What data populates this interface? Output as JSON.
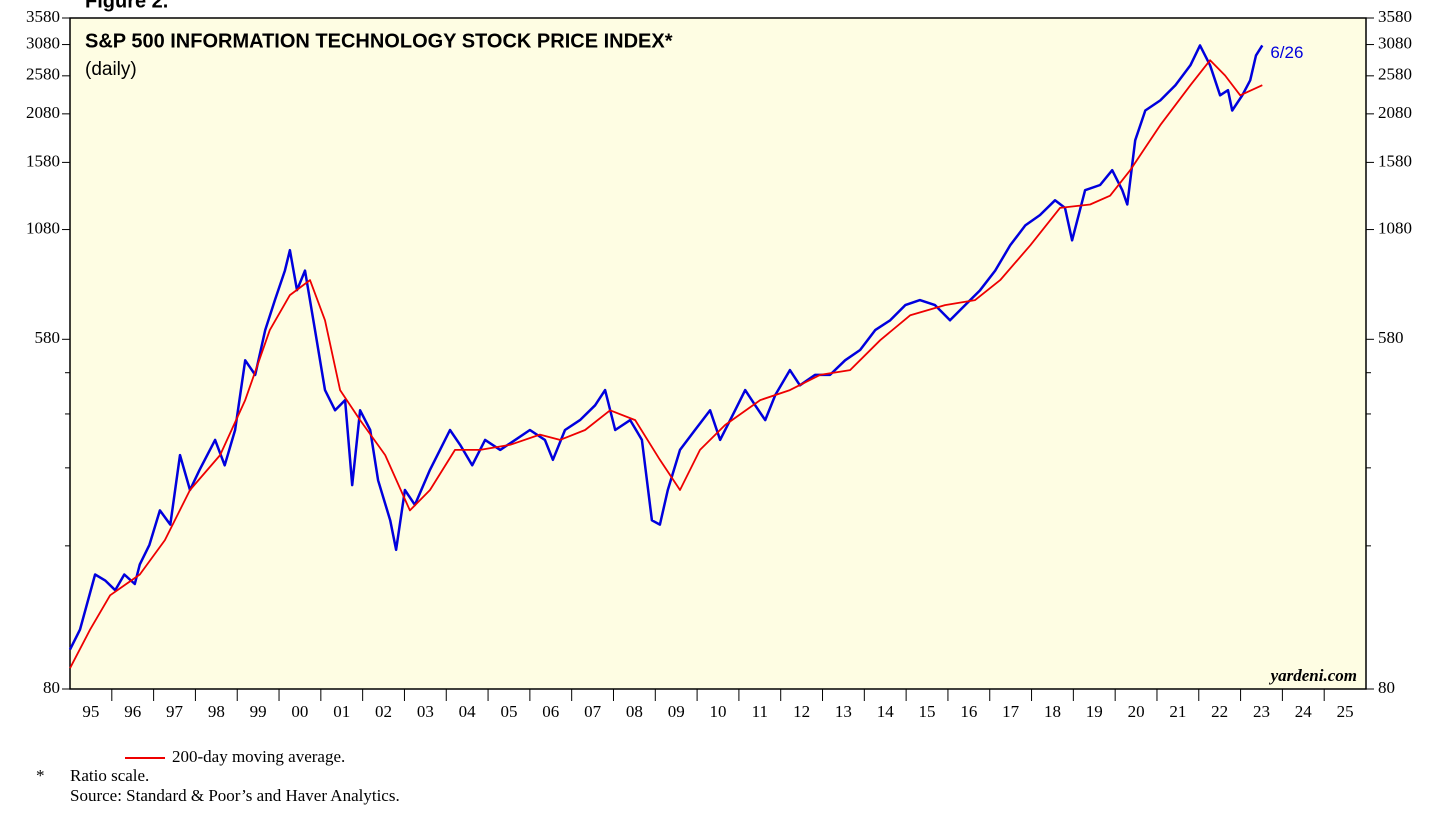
{
  "figure_label": "Figure 2.",
  "chart_data": {
    "type": "line",
    "title": "S&P 500 INFORMATION TECHNOLOGY STOCK PRICE INDEX*",
    "subtitle": "(daily)",
    "annotation": "6/26",
    "watermark": "yardeni.com",
    "log_scale": true,
    "background": "#fefde3",
    "ylim": [
      80,
      3580
    ],
    "yticks": [
      80,
      580,
      1080,
      1580,
      2080,
      2580,
      3080,
      3580
    ],
    "yminorticks": [
      180,
      280,
      380,
      480
    ],
    "xlim": [
      1995,
      2026
    ],
    "xticks": [
      {
        "value": 1995.5,
        "label": "95"
      },
      {
        "value": 1996.5,
        "label": "96"
      },
      {
        "value": 1997.5,
        "label": "97"
      },
      {
        "value": 1998.5,
        "label": "98"
      },
      {
        "value": 1999.5,
        "label": "99"
      },
      {
        "value": 2000.5,
        "label": "00"
      },
      {
        "value": 2001.5,
        "label": "01"
      },
      {
        "value": 2002.5,
        "label": "02"
      },
      {
        "value": 2003.5,
        "label": "03"
      },
      {
        "value": 2004.5,
        "label": "04"
      },
      {
        "value": 2005.5,
        "label": "05"
      },
      {
        "value": 2006.5,
        "label": "06"
      },
      {
        "value": 2007.5,
        "label": "07"
      },
      {
        "value": 2008.5,
        "label": "08"
      },
      {
        "value": 2009.5,
        "label": "09"
      },
      {
        "value": 2010.5,
        "label": "10"
      },
      {
        "value": 2011.5,
        "label": "11"
      },
      {
        "value": 2012.5,
        "label": "12"
      },
      {
        "value": 2013.5,
        "label": "13"
      },
      {
        "value": 2014.5,
        "label": "14"
      },
      {
        "value": 2015.5,
        "label": "15"
      },
      {
        "value": 2016.5,
        "label": "16"
      },
      {
        "value": 2017.5,
        "label": "17"
      },
      {
        "value": 2018.5,
        "label": "18"
      },
      {
        "value": 2019.5,
        "label": "19"
      },
      {
        "value": 2020.5,
        "label": "20"
      },
      {
        "value": 2021.5,
        "label": "21"
      },
      {
        "value": 2022.5,
        "label": "22"
      },
      {
        "value": 2023.5,
        "label": "23"
      },
      {
        "value": 2024.5,
        "label": "24"
      },
      {
        "value": 2025.5,
        "label": "25"
      }
    ],
    "xminorticks": [
      1996,
      1997,
      1998,
      1999,
      2000,
      2001,
      2002,
      2003,
      2004,
      2005,
      2006,
      2007,
      2008,
      2009,
      2010,
      2011,
      2012,
      2013,
      2014,
      2015,
      2016,
      2017,
      2018,
      2019,
      2020,
      2021,
      2022,
      2023,
      2024,
      2025
    ],
    "series": [
      {
        "color": "#0000dd",
        "x": [
          1995.0,
          1995.24,
          1995.6,
          1995.84,
          1996.08,
          1996.3,
          1996.55,
          1996.67,
          1996.9,
          1997.15,
          1997.4,
          1997.63,
          1997.87,
          1998.1,
          1998.47,
          1998.7,
          1998.95,
          1999.19,
          1999.43,
          1999.67,
          1999.9,
          2000.14,
          2000.26,
          2000.43,
          2000.62,
          2000.86,
          2001.1,
          2001.34,
          2001.58,
          2001.75,
          2001.94,
          2002.18,
          2002.37,
          2002.66,
          2002.8,
          2003.01,
          2003.25,
          2003.61,
          2003.85,
          2004.09,
          2004.33,
          2004.62,
          2004.93,
          2005.29,
          2005.65,
          2006.0,
          2006.36,
          2006.55,
          2006.84,
          2007.2,
          2007.56,
          2007.8,
          2008.04,
          2008.4,
          2008.68,
          2008.92,
          2009.11,
          2009.3,
          2009.59,
          2009.95,
          2010.31,
          2010.55,
          2010.91,
          2011.15,
          2011.39,
          2011.63,
          2011.87,
          2012.22,
          2012.46,
          2012.82,
          2013.18,
          2013.54,
          2013.9,
          2014.26,
          2014.62,
          2014.98,
          2015.33,
          2015.69,
          2016.05,
          2016.41,
          2016.77,
          2017.13,
          2017.49,
          2017.85,
          2018.2,
          2018.56,
          2018.8,
          2018.97,
          2019.28,
          2019.64,
          2019.93,
          2020.17,
          2020.29,
          2020.48,
          2020.72,
          2021.08,
          2021.44,
          2021.8,
          2022.03,
          2022.27,
          2022.51,
          2022.7,
          2022.8,
          2023.04,
          2023.23,
          2023.37,
          2023.52
        ],
        "values": [
          100,
          112,
          153,
          148,
          140,
          153,
          145,
          162,
          181,
          220,
          203,
          301,
          247,
          277,
          328,
          284,
          347,
          515,
          474,
          611,
          724,
          856,
          961,
          766,
          856,
          611,
          435,
          388,
          411,
          254,
          388,
          347,
          261,
          208,
          176,
          247,
          227,
          277,
          310,
          347,
          319,
          284,
          328,
          310,
          328,
          347,
          328,
          293,
          347,
          367,
          399,
          435,
          347,
          367,
          328,
          208,
          203,
          247,
          310,
          347,
          388,
          328,
          388,
          435,
          399,
          367,
          423,
          487,
          447,
          474,
          474,
          515,
          546,
          611,
          646,
          704,
          724,
          704,
          646,
          704,
          766,
          856,
          988,
          1106,
          1172,
          1275,
          1221,
          1016,
          1350,
          1390,
          1512,
          1350,
          1245,
          1791,
          2120,
          2245,
          2447,
          2739,
          3065,
          2739,
          2311,
          2378,
          2120,
          2311,
          2516,
          2896,
          3065
        ]
      },
      {
        "name": "200-day moving average.",
        "color": "#ee0000",
        "x": [
          1995.0,
          1995.48,
          1995.96,
          1996.67,
          1997.27,
          1997.87,
          1998.59,
          1999.19,
          1999.78,
          2000.26,
          2000.74,
          2001.1,
          2001.46,
          2001.94,
          2002.54,
          2003.13,
          2003.61,
          2004.21,
          2004.81,
          2005.53,
          2006.24,
          2006.72,
          2007.32,
          2007.92,
          2008.52,
          2009.11,
          2009.59,
          2010.07,
          2010.67,
          2011.51,
          2012.22,
          2012.94,
          2013.66,
          2014.38,
          2015.1,
          2015.93,
          2016.65,
          2017.25,
          2017.97,
          2018.68,
          2019.4,
          2019.88,
          2020.36,
          2021.08,
          2021.8,
          2022.27,
          2022.63,
          2022.99,
          2023.52
        ],
        "values": [
          90,
          112,
          136,
          153,
          186,
          247,
          301,
          411,
          611,
          745,
          811,
          646,
          435,
          367,
          301,
          220,
          247,
          310,
          310,
          319,
          338,
          328,
          347,
          388,
          367,
          293,
          247,
          310,
          357,
          411,
          435,
          474,
          487,
          577,
          665,
          704,
          724,
          811,
          988,
          1221,
          1245,
          1308,
          1512,
          1952,
          2447,
          2818,
          2585,
          2311,
          2447
        ]
      }
    ],
    "footnotes": [
      "*",
      "Ratio scale.",
      "Source: Standard & Poor’s and Haver Analytics."
    ]
  }
}
